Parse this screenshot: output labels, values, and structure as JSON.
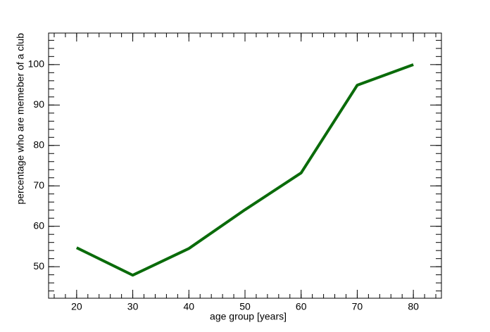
{
  "chart_data": {
    "type": "line",
    "x_label": "age group [years]",
    "y_label": "percentage who are memeber of a club",
    "x": [
      20,
      30,
      40,
      50,
      60,
      70,
      80
    ],
    "series": [
      {
        "color": "#0a6b0a",
        "values": [
          54.7,
          47.9,
          54.5,
          64.1,
          73.2,
          94.9,
          100
        ]
      }
    ],
    "xlim": [
      15,
      85
    ],
    "xticks": [
      20,
      30,
      40,
      50,
      60,
      70,
      80
    ],
    "ylim": [
      42.2,
      107.8
    ],
    "yticks": [
      50,
      60,
      70,
      80,
      90,
      100
    ]
  }
}
